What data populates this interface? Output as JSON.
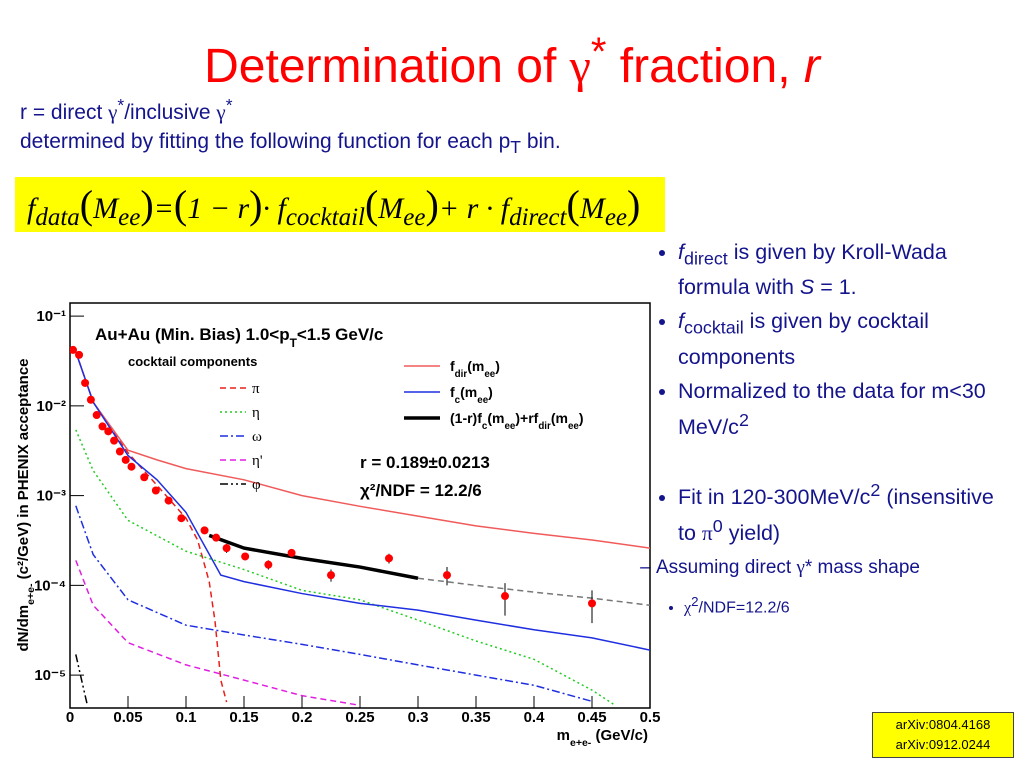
{
  "title": [
    "Determination of ",
    "γ",
    "*",
    " fraction, ",
    "r"
  ],
  "subtitle": [
    [
      "r = direct ",
      "γ",
      "*",
      "/inclusive ",
      "γ",
      "*"
    ],
    [
      "determined by fitting the following function for each p",
      "T",
      " bin."
    ]
  ],
  "formula": [
    "f",
    "data",
    "(",
    "M",
    "ee",
    ")",
    "=",
    "(",
    "1 − r",
    ")",
    "· f",
    "cocktail",
    "(",
    "M",
    "ee",
    ")",
    "+ r · f",
    "direct",
    "(",
    "M",
    "ee",
    ")"
  ],
  "bullets": [
    [
      "f",
      "direct",
      " is given by Kroll-Wada formula with ",
      "S",
      " = 1."
    ],
    [
      "f",
      "cocktail",
      " is given by cocktail components"
    ],
    [
      "Normalized to the data for m<30 MeV/c",
      "2"
    ],
    [
      "Fit in 120-300MeV/c",
      "2",
      " (insensitive to ",
      "π",
      "0",
      " yield)"
    ]
  ],
  "sub_bullet": [
    "Assuming direct ",
    "γ",
    "* mass shape"
  ],
  "sub_sub_bullet": [
    "χ",
    "2",
    "/NDF=12.2/6"
  ],
  "references": [
    "arXiv:0804.4168",
    "arXiv:0912.0244"
  ],
  "chart_data": {
    "type": "line",
    "yscale": "log",
    "annotation": [
      "Au+Au (Min. Bias) 1.0<p",
      "T",
      "<1.5 GeV/c"
    ],
    "fit_result": [
      "r = 0.189±0.0213",
      "χ²/NDF = 12.2/6"
    ],
    "x_label": [
      "m",
      "e+e-",
      " (GeV/c)"
    ],
    "y_label": [
      "dN/dm",
      "e+e-",
      " (c²/GeV) in PHENIX acceptance"
    ],
    "xlim": [
      0,
      0.5
    ],
    "xticks": [
      0,
      0.05,
      0.1,
      0.15,
      0.2,
      0.25,
      0.3,
      0.35,
      0.4,
      0.45,
      0.5
    ],
    "ylim": [
      4.3e-06,
      0.14
    ],
    "yticks": [
      {
        "value": 1e-05,
        "label": "10⁻⁵"
      },
      {
        "value": 0.0001,
        "label": "10⁻⁴"
      },
      {
        "value": 0.001,
        "label": "10⁻³"
      },
      {
        "value": 0.01,
        "label": "10⁻²"
      },
      {
        "value": 0.1,
        "label": "10⁻¹"
      }
    ],
    "series": [
      {
        "name": [
          "f",
          "dir",
          "(m",
          "ee",
          ")"
        ],
        "color": "#f05a5a",
        "x": [
          0.005,
          0.02,
          0.05,
          0.075,
          0.1,
          0.15,
          0.2,
          0.25,
          0.3,
          0.35,
          0.4,
          0.45,
          0.5
        ],
        "values": [
          0.04,
          0.011,
          0.0032,
          0.0025,
          0.002,
          0.0015,
          0.001,
          0.00076,
          0.00059,
          0.00046,
          0.00038,
          0.00032,
          0.00026
        ]
      },
      {
        "name": [
          "f",
          "c",
          "(m",
          "ee",
          ")"
        ],
        "color": "#1f2fe0",
        "x": [
          0.005,
          0.02,
          0.05,
          0.075,
          0.1,
          0.125,
          0.13,
          0.15,
          0.2,
          0.25,
          0.3,
          0.35,
          0.4,
          0.45,
          0.5
        ],
        "values": [
          0.04,
          0.011,
          0.0028,
          0.0015,
          0.00065,
          0.00017,
          0.00013,
          0.00011,
          8.1e-05,
          6.3e-05,
          5.3e-05,
          4.1e-05,
          3.2e-05,
          2.6e-05,
          1.9e-05
        ]
      },
      {
        "name": [
          "(1-r)f",
          "c",
          "(m",
          "ee",
          ")+rf",
          "dir",
          "(m",
          "ee",
          ")"
        ],
        "color": "#000000",
        "linestyle": "bold",
        "x": [
          0.12,
          0.15,
          0.2,
          0.25,
          0.3
        ],
        "values": [
          0.00036,
          0.00026,
          0.0002,
          0.00016,
          0.00012
        ]
      },
      {
        "color": "#777777",
        "linestyle": "dashed",
        "x": [
          0.3,
          0.35,
          0.4,
          0.45,
          0.5
        ],
        "values": [
          0.00012,
          0.0001,
          8.4e-05,
          7.2e-05,
          6e-05
        ]
      },
      {
        "type": "scatter",
        "color": "#ff0000",
        "x": [
          0.0026,
          0.0078,
          0.013,
          0.018,
          0.023,
          0.028,
          0.033,
          0.038,
          0.043,
          0.048,
          0.053,
          0.064,
          0.074,
          0.085,
          0.096,
          0.116,
          0.126,
          0.135,
          0.151,
          0.171,
          0.191,
          0.225,
          0.275,
          0.325,
          0.375,
          0.45
        ],
        "values": [
          0.042,
          0.037,
          0.018,
          0.0117,
          0.0079,
          0.0059,
          0.0052,
          0.0041,
          0.0031,
          0.0025,
          0.0021,
          0.0016,
          0.00114,
          0.00088,
          0.00056,
          0.00041,
          0.00034,
          0.00026,
          0.00021,
          0.00017,
          0.00023,
          0.00013,
          0.0002,
          0.00013,
          7.6e-05,
          6.3e-05
        ],
        "errors": [
          0.002,
          0.002,
          0.001,
          0.0006,
          0.0004,
          0.0003,
          0.0003,
          0.0002,
          0.0002,
          0.00015,
          0.00012,
          0.0001,
          6e-05,
          5e-05,
          3e-05,
          3e-05,
          3e-05,
          3e-05,
          2e-05,
          2e-05,
          2e-05,
          2e-05,
          2.5e-05,
          3e-05,
          3e-05,
          2.5e-05
        ]
      }
    ],
    "cocktail": {
      "title": "cocktail components",
      "series": [
        {
          "name": "π",
          "color": "#e8201a",
          "linestyle": "dashed",
          "x": [
            0.005,
            0.02,
            0.05,
            0.08,
            0.1,
            0.11,
            0.12,
            0.125,
            0.13,
            0.135
          ],
          "values": [
            0.04,
            0.011,
            0.003,
            0.0011,
            0.00056,
            0.00032,
            0.00011,
            4e-05,
            8.8e-06,
            5e-06
          ]
        },
        {
          "name": "η",
          "color": "#22cc22",
          "linestyle": "dotted",
          "x": [
            0.005,
            0.02,
            0.05,
            0.1,
            0.15,
            0.2,
            0.25,
            0.3,
            0.35,
            0.4,
            0.45,
            0.47
          ],
          "values": [
            0.0054,
            0.0019,
            0.00053,
            0.00024,
            0.00015,
            8.8e-05,
            6.9e-05,
            4.1e-05,
            2.4e-05,
            1.5e-05,
            6.8e-06,
            4.6e-06
          ]
        },
        {
          "name": "ω",
          "color": "#1f2fe0",
          "linestyle": "dashdot",
          "x": [
            0.005,
            0.02,
            0.05,
            0.1,
            0.15,
            0.2,
            0.25,
            0.3,
            0.35,
            0.4,
            0.45
          ],
          "values": [
            0.00077,
            0.00022,
            6.9e-05,
            3.6e-05,
            2.8e-05,
            2.2e-05,
            1.7e-05,
            1.3e-05,
            1e-05,
            7.7e-06,
            5.1e-06
          ]
        },
        {
          "name": "η'",
          "color": "#e020e0",
          "linestyle": "dashed",
          "x": [
            0.005,
            0.02,
            0.05,
            0.1,
            0.15,
            0.2,
            0.25
          ],
          "values": [
            0.00019,
            6e-05,
            2.3e-05,
            1.3e-05,
            8.8e-06,
            5.9e-06,
            4.6e-06
          ]
        },
        {
          "name": "φ",
          "color": "#000000",
          "linestyle": "dashdotdot",
          "x": [
            0.005,
            0.01,
            0.015
          ],
          "values": [
            1.7e-05,
            8.8e-06,
            4.6e-06
          ]
        }
      ]
    }
  }
}
